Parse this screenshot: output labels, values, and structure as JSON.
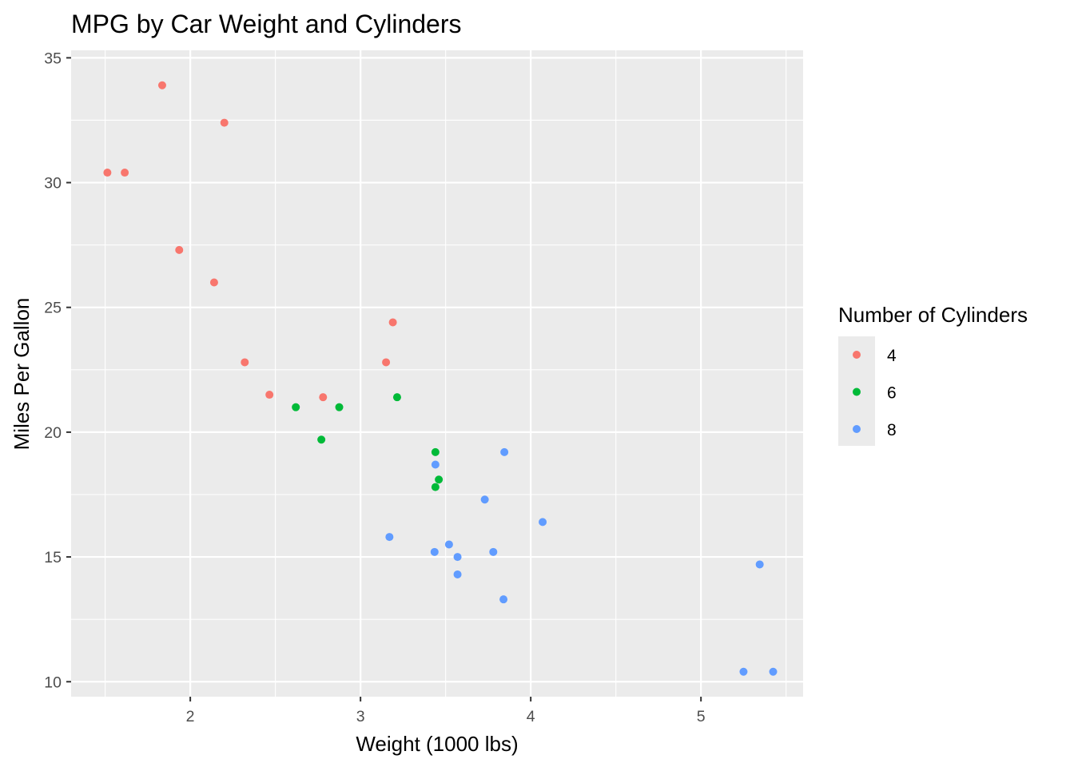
{
  "chart_data": {
    "type": "scatter",
    "title": "MPG by Car Weight and Cylinders",
    "xlabel": "Weight (1000 lbs)",
    "ylabel": "Miles Per Gallon",
    "xlim": [
      1.3,
      5.6
    ],
    "ylim": [
      9.4,
      35.3
    ],
    "x_ticks": [
      2,
      3,
      4,
      5
    ],
    "y_ticks": [
      10,
      15,
      20,
      25,
      30,
      35
    ],
    "grid": true,
    "panel_background": "#ebebeb",
    "legend": {
      "title": "Number of Cylinders",
      "position": "right",
      "entries": [
        "4",
        "6",
        "8"
      ]
    },
    "series": [
      {
        "name": "4",
        "color": "#f8766d",
        "points": [
          [
            1.513,
            30.4
          ],
          [
            1.615,
            30.4
          ],
          [
            1.835,
            33.9
          ],
          [
            1.935,
            27.3
          ],
          [
            2.14,
            26.0
          ],
          [
            2.2,
            32.4
          ],
          [
            2.32,
            22.8
          ],
          [
            2.465,
            21.5
          ],
          [
            2.78,
            21.4
          ],
          [
            3.15,
            22.8
          ],
          [
            3.19,
            24.4
          ]
        ]
      },
      {
        "name": "6",
        "color": "#00ba38",
        "points": [
          [
            2.62,
            21.0
          ],
          [
            2.875,
            21.0
          ],
          [
            3.215,
            21.4
          ],
          [
            2.77,
            19.7
          ],
          [
            3.44,
            19.2
          ],
          [
            3.46,
            18.1
          ],
          [
            3.44,
            17.8
          ]
        ]
      },
      {
        "name": "8",
        "color": "#619cff",
        "points": [
          [
            3.44,
            18.7
          ],
          [
            3.57,
            14.3
          ],
          [
            4.07,
            16.4
          ],
          [
            3.73,
            17.3
          ],
          [
            3.78,
            15.2
          ],
          [
            5.25,
            10.4
          ],
          [
            5.424,
            10.4
          ],
          [
            5.345,
            14.7
          ],
          [
            3.52,
            15.5
          ],
          [
            3.435,
            15.2
          ],
          [
            3.84,
            13.3
          ],
          [
            3.845,
            19.2
          ],
          [
            3.17,
            15.8
          ],
          [
            3.57,
            15.0
          ]
        ]
      }
    ]
  }
}
